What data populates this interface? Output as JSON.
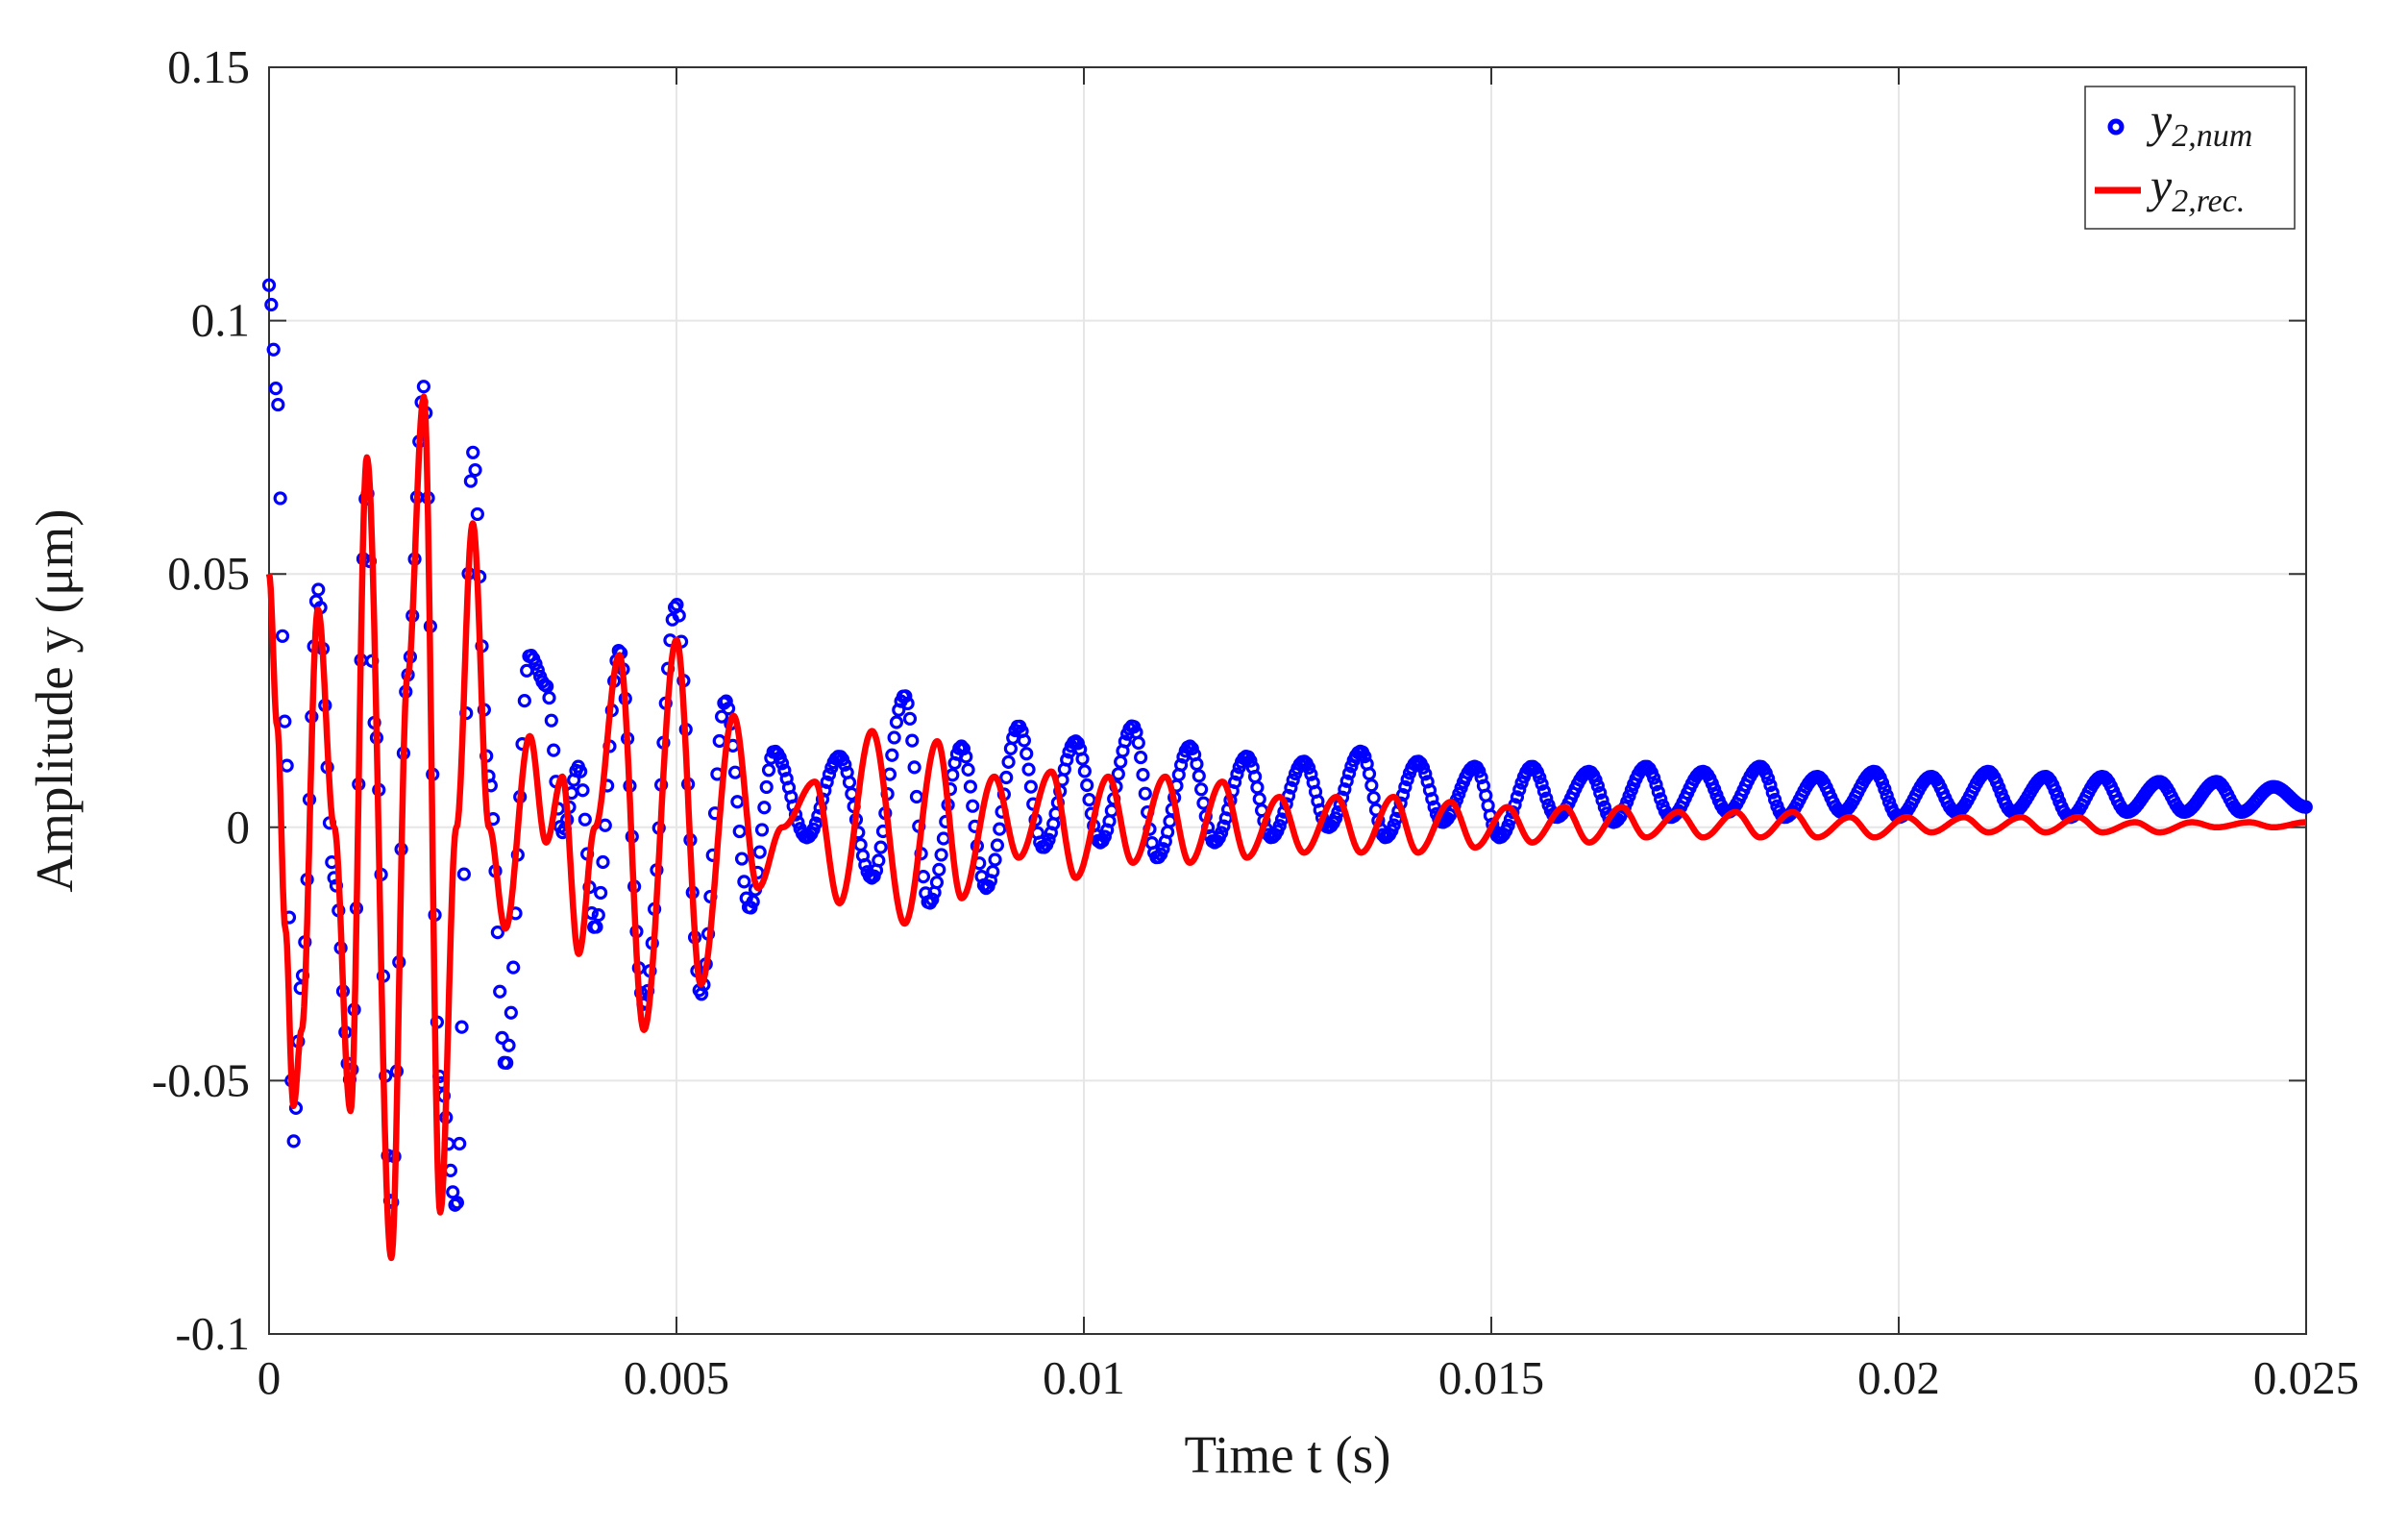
{
  "chart_data": {
    "type": "line",
    "title": "",
    "xlabel": "Time t (s)",
    "ylabel": "Amplitude y (μm)",
    "xlim": [
      0,
      0.025
    ],
    "ylim": [
      -0.1,
      0.15
    ],
    "xticks": [
      0,
      0.005,
      0.01,
      0.015,
      0.02,
      0.025
    ],
    "xtick_labels": [
      "0",
      "0.005",
      "0.01",
      "0.015",
      "0.02",
      "0.025"
    ],
    "yticks": [
      -0.1,
      -0.05,
      0,
      0.05,
      0.1,
      0.15
    ],
    "ytick_labels": [
      "-0.1",
      "-0.05",
      "0",
      "0.05",
      "0.1",
      "0.15"
    ],
    "grid": true,
    "legend_position": "top-right",
    "series": [
      {
        "name": "y2,num",
        "style": "markers",
        "color": "#0000ff",
        "x": [
          0,
          0.0001,
          0.0002,
          0.0003,
          0.0004,
          0.0006,
          0.0008,
          0.001,
          0.0012,
          0.0013,
          0.0015,
          0.0017,
          0.0019,
          0.0021,
          0.0023,
          0.0025,
          0.0027,
          0.0029,
          0.0032,
          0.0034,
          0.0036,
          0.0038,
          0.004,
          0.0043,
          0.0046,
          0.005,
          0.0053,
          0.0056,
          0.0059,
          0.0062,
          0.0066,
          0.007,
          0.0074,
          0.0078,
          0.0081,
          0.0085,
          0.0088,
          0.0092,
          0.0095,
          0.0099,
          0.0102,
          0.0106,
          0.0109,
          0.0113,
          0.0116,
          0.012,
          0.0123,
          0.0127,
          0.013,
          0.0134,
          0.0137,
          0.0141,
          0.0144,
          0.0148,
          0.0151,
          0.0155,
          0.0158,
          0.0162,
          0.0165,
          0.0169,
          0.0172,
          0.0176,
          0.0179,
          0.0183,
          0.0186,
          0.019,
          0.0193,
          0.0197,
          0.02,
          0.0204,
          0.0207,
          0.0211,
          0.0214,
          0.0218,
          0.0221,
          0.0225,
          0.0228,
          0.0232,
          0.0235,
          0.0239,
          0.0242,
          0.0246,
          0.025
        ],
        "y": [
          0.107,
          0.085,
          0.02,
          -0.062,
          -0.03,
          0.047,
          -0.01,
          -0.05,
          0.067,
          0.02,
          -0.075,
          0.03,
          0.087,
          -0.05,
          -0.075,
          0.074,
          0.01,
          -0.047,
          0.034,
          0.028,
          -0.001,
          0.012,
          -0.02,
          0.035,
          -0.035,
          0.044,
          -0.033,
          0.025,
          -0.016,
          0.015,
          -0.002,
          0.014,
          -0.01,
          0.026,
          -0.015,
          0.016,
          -0.012,
          0.02,
          -0.004,
          0.017,
          -0.003,
          0.02,
          -0.006,
          0.016,
          -0.003,
          0.014,
          -0.002,
          0.013,
          0.0,
          0.015,
          -0.002,
          0.013,
          0.001,
          0.012,
          -0.002,
          0.012,
          0.002,
          0.011,
          0.001,
          0.012,
          0.002,
          0.011,
          0.003,
          0.012,
          0.002,
          0.01,
          0.003,
          0.011,
          0.002,
          0.01,
          0.003,
          0.011,
          0.003,
          0.01,
          0.002,
          0.01,
          0.003,
          0.009,
          0.003,
          0.009,
          0.003,
          0.008,
          0.004
        ]
      },
      {
        "name": "y2,rec.",
        "style": "line",
        "color": "#ff0000",
        "x": [
          0,
          0.0001,
          0.0002,
          0.0003,
          0.0004,
          0.0006,
          0.0008,
          0.001,
          0.0012,
          0.0015,
          0.0017,
          0.0019,
          0.0021,
          0.0023,
          0.0025,
          0.0027,
          0.0029,
          0.0032,
          0.0034,
          0.0036,
          0.0038,
          0.004,
          0.0043,
          0.0046,
          0.005,
          0.0053,
          0.0057,
          0.006,
          0.0063,
          0.0067,
          0.007,
          0.0074,
          0.0078,
          0.0082,
          0.0085,
          0.0089,
          0.0092,
          0.0096,
          0.0099,
          0.0103,
          0.0106,
          0.011,
          0.0113,
          0.0117,
          0.012,
          0.0124,
          0.0127,
          0.0131,
          0.0134,
          0.0138,
          0.0141,
          0.0145,
          0.0148,
          0.0152,
          0.0155,
          0.0159,
          0.0162,
          0.0166,
          0.0169,
          0.0173,
          0.0176,
          0.018,
          0.0183,
          0.0187,
          0.019,
          0.0194,
          0.0197,
          0.0201,
          0.0204,
          0.0208,
          0.0211,
          0.0215,
          0.0218,
          0.0222,
          0.0225,
          0.0229,
          0.0232,
          0.0236,
          0.0239,
          0.0243,
          0.0246,
          0.025
        ],
        "y": [
          0.05,
          0.02,
          -0.02,
          -0.055,
          -0.04,
          0.043,
          0.0,
          -0.056,
          0.073,
          -0.085,
          0.03,
          0.085,
          -0.076,
          0.0,
          0.06,
          0.0,
          -0.02,
          0.018,
          -0.003,
          0.01,
          -0.025,
          0.0,
          0.034,
          -0.04,
          0.037,
          -0.031,
          0.022,
          -0.012,
          0.0,
          0.009,
          -0.015,
          0.019,
          -0.019,
          0.017,
          -0.014,
          0.01,
          -0.006,
          0.011,
          -0.01,
          0.01,
          -0.007,
          0.01,
          -0.007,
          0.009,
          -0.006,
          0.006,
          -0.005,
          0.006,
          -0.005,
          0.006,
          -0.005,
          0.005,
          -0.004,
          0.004,
          -0.003,
          0.004,
          -0.003,
          0.004,
          -0.002,
          0.003,
          -0.002,
          0.003,
          -0.002,
          0.003,
          -0.002,
          0.002,
          -0.002,
          0.002,
          -0.001,
          0.002,
          -0.001,
          0.002,
          -0.001,
          0.002,
          -0.001,
          0.001,
          -0.001,
          0.001,
          0.0,
          0.001,
          0.0,
          0.001
        ]
      }
    ],
    "legend": {
      "entries": [
        {
          "base": "y",
          "sub": "2,num"
        },
        {
          "base": "y",
          "sub": "2,rec."
        }
      ]
    }
  }
}
